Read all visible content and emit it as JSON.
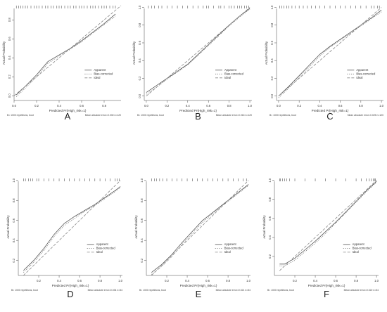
{
  "chart_data": [
    {
      "panel_letter": "A",
      "type": "line",
      "xlabel": "Predicted Pr{High_risk=1}",
      "ylabel": "Actual Probability",
      "xlim": [
        0.0,
        0.95
      ],
      "ylim": [
        -0.05,
        0.95
      ],
      "x_ticks": [
        "0.0",
        "0.2",
        "0.4",
        "0.6",
        "0.8"
      ],
      "y_ticks": [
        "0.0",
        "0.2",
        "0.4",
        "0.6",
        "0.8"
      ],
      "legend": [
        "Apparent",
        "Bias-corrected",
        "Ideal"
      ],
      "legend_position": "right",
      "footer_left": "B= 1000 repetitions, boot",
      "footer_right": "Mean absolute error=0.030 n=120",
      "series": [
        {
          "name": "Apparent",
          "style": "solid",
          "points": [
            [
              0.02,
              0.01
            ],
            [
              0.1,
              0.1
            ],
            [
              0.2,
              0.22
            ],
            [
              0.3,
              0.36
            ],
            [
              0.4,
              0.43
            ],
            [
              0.5,
              0.5
            ],
            [
              0.6,
              0.58
            ],
            [
              0.7,
              0.67
            ],
            [
              0.8,
              0.76
            ],
            [
              0.9,
              0.86
            ]
          ]
        },
        {
          "name": "Bias-corrected",
          "style": "dotted",
          "points": [
            [
              0.02,
              -0.01
            ],
            [
              0.1,
              0.08
            ],
            [
              0.2,
              0.2
            ],
            [
              0.3,
              0.34
            ],
            [
              0.4,
              0.42
            ],
            [
              0.5,
              0.49
            ],
            [
              0.6,
              0.57
            ],
            [
              0.7,
              0.66
            ],
            [
              0.8,
              0.75
            ],
            [
              0.9,
              0.84
            ]
          ]
        },
        {
          "name": "Ideal",
          "style": "dashed",
          "points": [
            [
              0.0,
              0.0
            ],
            [
              0.95,
              0.95
            ]
          ]
        }
      ],
      "rug": [
        0.02,
        0.04,
        0.06,
        0.08,
        0.1,
        0.12,
        0.15,
        0.18,
        0.2,
        0.22,
        0.25,
        0.28,
        0.3,
        0.33,
        0.35,
        0.38,
        0.4,
        0.42,
        0.45,
        0.48,
        0.5,
        0.53,
        0.55,
        0.58,
        0.6,
        0.62,
        0.65,
        0.68,
        0.7,
        0.72,
        0.75,
        0.78,
        0.8,
        0.82,
        0.85,
        0.88,
        0.9
      ]
    },
    {
      "panel_letter": "B",
      "type": "line",
      "xlabel": "Predicted Pr{High_risk=1}",
      "ylabel": "Actual Probability",
      "xlim": [
        -0.02,
        1.02
      ],
      "ylim": [
        -0.05,
        1.02
      ],
      "x_ticks": [
        "0.0",
        "0.2",
        "0.4",
        "0.6",
        "0.8",
        "1.0"
      ],
      "y_ticks": [
        "0.0",
        "0.2",
        "0.4",
        "0.6",
        "0.8",
        "1.0"
      ],
      "legend": [
        "Apparent",
        "Bias-corrected",
        "Ideal"
      ],
      "legend_position": "right",
      "footer_left": "B= 1000 repetitions, boot",
      "footer_right": "Mean absolute error=0.016 n=120",
      "series": [
        {
          "name": "Apparent",
          "style": "solid",
          "points": [
            [
              0.0,
              0.04
            ],
            [
              0.1,
              0.12
            ],
            [
              0.2,
              0.2
            ],
            [
              0.3,
              0.28
            ],
            [
              0.4,
              0.36
            ],
            [
              0.5,
              0.47
            ],
            [
              0.6,
              0.58
            ],
            [
              0.7,
              0.69
            ],
            [
              0.8,
              0.8
            ],
            [
              0.9,
              0.9
            ],
            [
              1.0,
              0.99
            ]
          ]
        },
        {
          "name": "Bias-corrected",
          "style": "dotted",
          "points": [
            [
              0.0,
              0.02
            ],
            [
              0.1,
              0.1
            ],
            [
              0.2,
              0.19
            ],
            [
              0.3,
              0.27
            ],
            [
              0.4,
              0.35
            ],
            [
              0.5,
              0.46
            ],
            [
              0.6,
              0.57
            ],
            [
              0.7,
              0.68
            ],
            [
              0.8,
              0.79
            ],
            [
              0.9,
              0.89
            ],
            [
              1.0,
              0.98
            ]
          ]
        },
        {
          "name": "Ideal",
          "style": "dashed",
          "points": [
            [
              0.0,
              0.0
            ],
            [
              1.0,
              1.0
            ]
          ]
        }
      ],
      "rug": [
        0.02,
        0.05,
        0.08,
        0.12,
        0.15,
        0.2,
        0.25,
        0.3,
        0.35,
        0.4,
        0.45,
        0.5,
        0.55,
        0.58,
        0.6,
        0.65,
        0.7,
        0.72,
        0.75,
        0.8,
        0.82,
        0.85,
        0.88,
        0.9,
        0.92,
        0.95,
        0.97,
        0.99
      ]
    },
    {
      "panel_letter": "C",
      "type": "line",
      "xlabel": "Predicted Pr{High_risk=1}",
      "ylabel": "Actual Probability",
      "xlim": [
        -0.02,
        1.02
      ],
      "ylim": [
        -0.05,
        1.02
      ],
      "x_ticks": [
        "0.0",
        "0.2",
        "0.4",
        "0.6",
        "0.8",
        "1.0"
      ],
      "y_ticks": [
        "0.0",
        "0.2",
        "0.4",
        "0.6",
        "0.8",
        "1.0"
      ],
      "legend": [
        "Apparent",
        "Bias-corrected",
        "Ideal"
      ],
      "legend_position": "right",
      "footer_left": "B= 1000 repetitions, boot",
      "footer_right": "Mean absolute error=0.025 n=120",
      "series": [
        {
          "name": "Apparent",
          "style": "solid",
          "points": [
            [
              0.0,
              0.0
            ],
            [
              0.1,
              0.11
            ],
            [
              0.2,
              0.23
            ],
            [
              0.3,
              0.35
            ],
            [
              0.4,
              0.47
            ],
            [
              0.5,
              0.56
            ],
            [
              0.6,
              0.64
            ],
            [
              0.7,
              0.72
            ],
            [
              0.8,
              0.8
            ],
            [
              0.9,
              0.88
            ],
            [
              1.0,
              0.97
            ]
          ]
        },
        {
          "name": "Bias-corrected",
          "style": "dotted",
          "points": [
            [
              0.0,
              -0.02
            ],
            [
              0.1,
              0.09
            ],
            [
              0.2,
              0.21
            ],
            [
              0.3,
              0.33
            ],
            [
              0.4,
              0.45
            ],
            [
              0.5,
              0.55
            ],
            [
              0.6,
              0.63
            ],
            [
              0.7,
              0.71
            ],
            [
              0.8,
              0.79
            ],
            [
              0.9,
              0.87
            ],
            [
              1.0,
              0.95
            ]
          ]
        },
        {
          "name": "Ideal",
          "style": "dashed",
          "points": [
            [
              0.0,
              0.0
            ],
            [
              1.0,
              1.0
            ]
          ]
        }
      ],
      "rug": [
        0.01,
        0.03,
        0.05,
        0.08,
        0.1,
        0.13,
        0.16,
        0.2,
        0.24,
        0.28,
        0.32,
        0.36,
        0.4,
        0.45,
        0.5,
        0.55,
        0.6,
        0.65,
        0.7,
        0.75,
        0.8,
        0.85,
        0.9,
        0.93,
        0.96,
        0.98
      ]
    },
    {
      "panel_letter": "D",
      "type": "line",
      "xlabel": "Predicted Pr{High_risk=1}",
      "ylabel": "Actual Probability",
      "xlim": [
        0.0,
        1.02
      ],
      "ylim": [
        0.05,
        1.02
      ],
      "x_ticks": [
        "0.2",
        "0.4",
        "0.6",
        "0.8",
        "1.0"
      ],
      "y_ticks": [
        "0.2",
        "0.4",
        "0.6",
        "0.8",
        "1.0"
      ],
      "legend": [
        "Apparent",
        "Bias-corrected",
        "Ideal"
      ],
      "legend_position": "right",
      "footer_left": "B= 1000 repetitions, boot",
      "footer_right": "Mean absolute error=0.034 n=54",
      "series": [
        {
          "name": "Apparent",
          "style": "solid",
          "points": [
            [
              0.05,
              0.1
            ],
            [
              0.15,
              0.2
            ],
            [
              0.25,
              0.32
            ],
            [
              0.35,
              0.46
            ],
            [
              0.45,
              0.57
            ],
            [
              0.55,
              0.64
            ],
            [
              0.65,
              0.7
            ],
            [
              0.75,
              0.76
            ],
            [
              0.85,
              0.83
            ],
            [
              0.95,
              0.9
            ],
            [
              1.0,
              0.94
            ]
          ]
        },
        {
          "name": "Bias-corrected",
          "style": "dotted",
          "points": [
            [
              0.05,
              0.08
            ],
            [
              0.15,
              0.18
            ],
            [
              0.25,
              0.3
            ],
            [
              0.35,
              0.44
            ],
            [
              0.45,
              0.55
            ],
            [
              0.55,
              0.62
            ],
            [
              0.65,
              0.69
            ],
            [
              0.75,
              0.75
            ],
            [
              0.85,
              0.82
            ],
            [
              0.95,
              0.89
            ],
            [
              1.0,
              0.93
            ]
          ]
        },
        {
          "name": "Ideal",
          "style": "dashed",
          "points": [
            [
              0.05,
              0.05
            ],
            [
              1.0,
              1.0
            ]
          ]
        }
      ],
      "rug": [
        0.05,
        0.07,
        0.1,
        0.12,
        0.14,
        0.18,
        0.2,
        0.25,
        0.3,
        0.35,
        0.4,
        0.45,
        0.5,
        0.55,
        0.6,
        0.65,
        0.7,
        0.75,
        0.8,
        0.85,
        0.9,
        0.95,
        0.97,
        0.99
      ]
    },
    {
      "panel_letter": "E",
      "type": "line",
      "xlabel": "Predicted Pr{High_risk=1}",
      "ylabel": "Actual Probability",
      "xlim": [
        0.0,
        1.02
      ],
      "ylim": [
        0.05,
        1.02
      ],
      "x_ticks": [
        "0.2",
        "0.4",
        "0.6",
        "0.8",
        "1.0"
      ],
      "y_ticks": [
        "0.2",
        "0.4",
        "0.6",
        "0.8",
        "1.0"
      ],
      "legend": [
        "Apparent",
        "Bias-corrected",
        "Ideal"
      ],
      "legend_position": "right",
      "footer_left": "B= 1000 repetitions, boot",
      "footer_right": "Mean absolute error=0.021 n=54",
      "series": [
        {
          "name": "Apparent",
          "style": "solid",
          "points": [
            [
              0.05,
              0.08
            ],
            [
              0.15,
              0.16
            ],
            [
              0.25,
              0.26
            ],
            [
              0.35,
              0.38
            ],
            [
              0.45,
              0.49
            ],
            [
              0.55,
              0.6
            ],
            [
              0.65,
              0.68
            ],
            [
              0.75,
              0.76
            ],
            [
              0.85,
              0.84
            ],
            [
              0.95,
              0.92
            ],
            [
              1.0,
              0.96
            ]
          ]
        },
        {
          "name": "Bias-corrected",
          "style": "dotted",
          "points": [
            [
              0.05,
              0.06
            ],
            [
              0.15,
              0.14
            ],
            [
              0.25,
              0.24
            ],
            [
              0.35,
              0.36
            ],
            [
              0.45,
              0.47
            ],
            [
              0.55,
              0.58
            ],
            [
              0.65,
              0.67
            ],
            [
              0.75,
              0.75
            ],
            [
              0.85,
              0.83
            ],
            [
              0.95,
              0.91
            ],
            [
              1.0,
              0.95
            ]
          ]
        },
        {
          "name": "Ideal",
          "style": "dashed",
          "points": [
            [
              0.05,
              0.05
            ],
            [
              1.0,
              1.0
            ]
          ]
        }
      ],
      "rug": [
        0.05,
        0.08,
        0.1,
        0.13,
        0.16,
        0.2,
        0.25,
        0.3,
        0.35,
        0.4,
        0.45,
        0.5,
        0.55,
        0.6,
        0.65,
        0.7,
        0.75,
        0.8,
        0.85,
        0.9,
        0.95,
        0.98
      ]
    },
    {
      "panel_letter": "F",
      "type": "line",
      "xlabel": "Predicted Pr{High_risk=1}",
      "ylabel": "Actual Probability",
      "xlim": [
        0.0,
        1.02
      ],
      "ylim": [
        0.0,
        1.02
      ],
      "x_ticks": [
        "0.2",
        "0.4",
        "0.6",
        "0.8",
        "1.0"
      ],
      "y_ticks": [
        "0.2",
        "0.4",
        "0.6",
        "0.8",
        "1.0"
      ],
      "legend": [
        "Apparent",
        "Bias-corrected",
        "Ideal"
      ],
      "legend_position": "right",
      "footer_left": "B= 1000 repetitions, boot",
      "footer_right": "Mean absolute error=0.022 n=54",
      "series": [
        {
          "name": "Apparent",
          "style": "solid",
          "points": [
            [
              0.05,
              0.12
            ],
            [
              0.1,
              0.12
            ],
            [
              0.2,
              0.18
            ],
            [
              0.3,
              0.27
            ],
            [
              0.4,
              0.36
            ],
            [
              0.5,
              0.46
            ],
            [
              0.6,
              0.56
            ],
            [
              0.7,
              0.67
            ],
            [
              0.8,
              0.78
            ],
            [
              0.9,
              0.89
            ],
            [
              1.0,
              0.99
            ]
          ]
        },
        {
          "name": "Bias-corrected",
          "style": "dotted",
          "points": [
            [
              0.05,
              0.1
            ],
            [
              0.1,
              0.1
            ],
            [
              0.2,
              0.16
            ],
            [
              0.3,
              0.25
            ],
            [
              0.4,
              0.34
            ],
            [
              0.5,
              0.44
            ],
            [
              0.6,
              0.55
            ],
            [
              0.7,
              0.66
            ],
            [
              0.8,
              0.77
            ],
            [
              0.9,
              0.88
            ],
            [
              1.0,
              0.98
            ]
          ]
        },
        {
          "name": "Ideal",
          "style": "dashed",
          "points": [
            [
              0.05,
              0.05
            ],
            [
              1.0,
              1.0
            ]
          ]
        }
      ],
      "rug": [
        0.05,
        0.06,
        0.08,
        0.1,
        0.12,
        0.15,
        0.2,
        0.3,
        0.4,
        0.5,
        0.6,
        0.7,
        0.8,
        0.85,
        0.9,
        0.93,
        0.95,
        0.97,
        0.98,
        0.99
      ]
    }
  ]
}
